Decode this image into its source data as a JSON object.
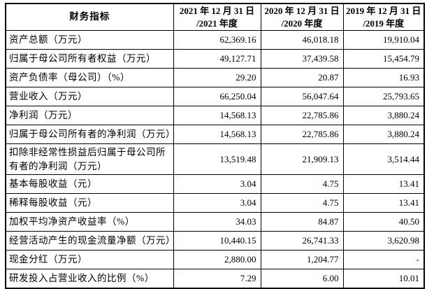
{
  "table": {
    "header": {
      "indicator_label": "财务指标",
      "periods": [
        {
          "line1": "2021 年 12 月 31 日",
          "line2": "/2021 年度"
        },
        {
          "line1": "2020 年 12 月 31 日",
          "line2": "/2020 年度"
        },
        {
          "line1": "2019 年 12 月 31 日",
          "line2": "/2019 年度"
        }
      ]
    },
    "rows": [
      {
        "label": "资产总额（万元）",
        "y2021": "62,369.16",
        "y2020": "46,018.18",
        "y2019": "19,910.04"
      },
      {
        "label": "归属于母公司所有者权益（万元）",
        "y2021": "49,127.71",
        "y2020": "37,439.58",
        "y2019": "15,454.79"
      },
      {
        "label": "资产负债率（母公司）（%）",
        "y2021": "29.20",
        "y2020": "20.87",
        "y2019": "16.93"
      },
      {
        "label": "营业收入（万元）",
        "y2021": "66,250.04",
        "y2020": "56,047.64",
        "y2019": "25,793.65"
      },
      {
        "label": "净利润（万元）",
        "y2021": "14,568.13",
        "y2020": "22,785.86",
        "y2019": "3,880.24"
      },
      {
        "label": "归属于母公司所有者的净利润（万元）",
        "y2021": "14,568.13",
        "y2020": "22,785.86",
        "y2019": "3,880.24"
      },
      {
        "label": "扣除非经常性损益后归属于母公司所有者的净利润（万元）",
        "y2021": "13,519.48",
        "y2020": "21,909.13",
        "y2019": "3,514.44"
      },
      {
        "label": "基本每股收益（元）",
        "y2021": "3.04",
        "y2020": "4.75",
        "y2019": "13.41"
      },
      {
        "label": "稀释每股收益（元）",
        "y2021": "3.04",
        "y2020": "4.75",
        "y2019": "13.41"
      },
      {
        "label": "加权平均净资产收益率（%）",
        "y2021": "34.03",
        "y2020": "84.87",
        "y2019": "40.50"
      },
      {
        "label": "经营活动产生的现金流量净额（万元）",
        "y2021": "10,440.15",
        "y2020": "26,741.33",
        "y2019": "3,620.98"
      },
      {
        "label": "现金分红（万元）",
        "y2021": "2,880.00",
        "y2020": "1,204.77",
        "y2019": "-"
      },
      {
        "label": "研发投入占营业收入的比例（%）",
        "y2021": "7.29",
        "y2020": "6.00",
        "y2019": "10.01"
      }
    ]
  }
}
